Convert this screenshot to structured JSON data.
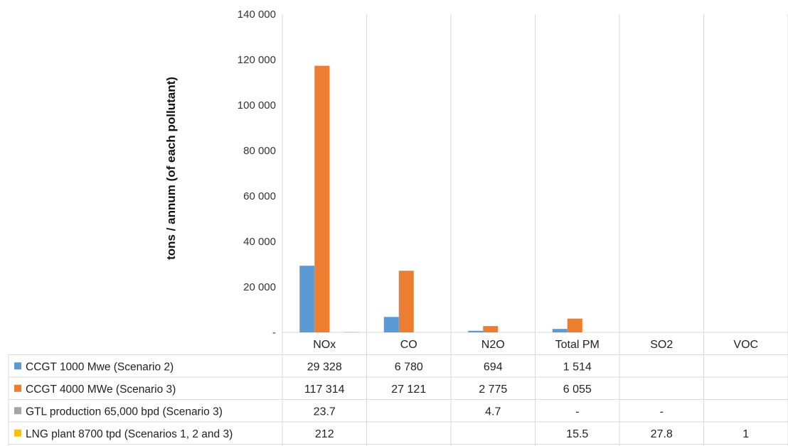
{
  "chart_data": {
    "type": "bar",
    "title": "",
    "xlabel": "",
    "ylabel": "tons / annum (of each pollutant)",
    "ylim": [
      0,
      140000
    ],
    "yticks": [
      0,
      20000,
      40000,
      60000,
      80000,
      100000,
      120000,
      140000
    ],
    "ytick_labels": [
      "-",
      "20 000",
      "40 000",
      "60 000",
      "80 000",
      "100 000",
      "120 000",
      "140 000"
    ],
    "grid": false,
    "legend": "data-table-rows",
    "categories": [
      "NOx",
      "CO",
      "N2O",
      "Total PM",
      "SO2",
      "VOC"
    ],
    "series": [
      {
        "name": "CCGT 1000 Mwe (Scenario 2)",
        "color": "#5b9bd5",
        "values": [
          29328,
          6780,
          694,
          1514,
          null,
          null
        ],
        "labels": [
          "29 328",
          "6 780",
          "694",
          "1 514",
          "",
          ""
        ]
      },
      {
        "name": "CCGT 4000 MWe (Scenario 3)",
        "color": "#ed7d31",
        "values": [
          117314,
          27121,
          2775,
          6055,
          null,
          null
        ],
        "labels": [
          "117 314",
          "27 121",
          "2 775",
          "6 055",
          "",
          ""
        ]
      },
      {
        "name": "GTL production 65,000 bpd (Scenario 3)",
        "color": "#a5a5a5",
        "values": [
          23.7,
          null,
          4.7,
          null,
          null,
          null
        ],
        "labels": [
          "23.7",
          "",
          "4.7",
          "-",
          "-",
          ""
        ]
      },
      {
        "name": "LNG plant 8700 tpd (Scenarios 1, 2 and 3)",
        "color": "#ffc000",
        "values": [
          212,
          null,
          null,
          15.5,
          27.8,
          1
        ],
        "labels": [
          "212",
          "",
          "",
          "15.5",
          "27.8",
          "1"
        ]
      }
    ]
  }
}
